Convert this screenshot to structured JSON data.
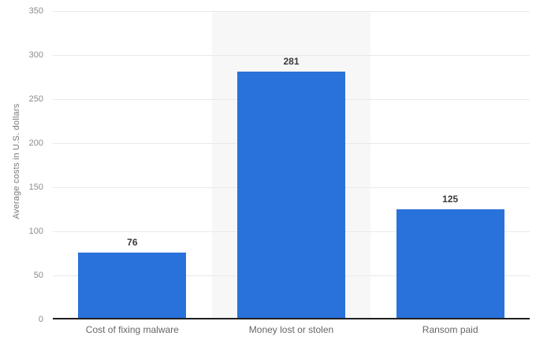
{
  "chart_data": {
    "type": "bar",
    "title": "",
    "categories": [
      "Cost of fixing malware",
      "Money lost or stolen",
      "Ransom paid"
    ],
    "values": [
      76,
      281,
      125
    ],
    "xlabel": "",
    "ylabel": "Average costs in U.S. dollars",
    "ylim": [
      0,
      350
    ],
    "yticks": [
      0,
      50,
      100,
      150,
      200,
      250,
      300,
      350
    ],
    "grid": "horizontal",
    "legend": "none",
    "striped_columns": "every second column shaded"
  },
  "colors": {
    "bar": "#2a72db",
    "background": "#ffffff",
    "column_band": "#f7f7f7",
    "gridline": "#e9e9e9",
    "axis_line": "#1f1f1f",
    "tick_label": "#8b8b8b",
    "category_label": "#666666",
    "value_label": "#3a3a3a",
    "axis_title": "#7a7a7a"
  }
}
